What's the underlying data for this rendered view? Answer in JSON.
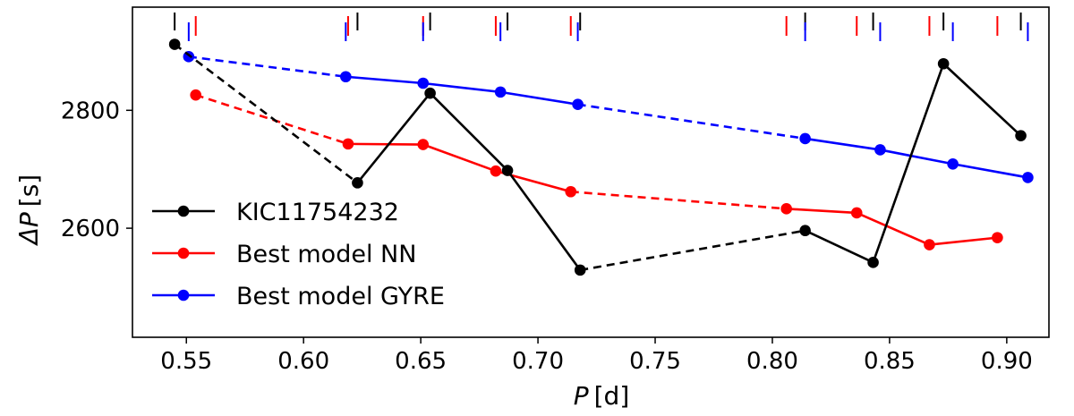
{
  "chart_data": {
    "type": "line",
    "xlabel_var": "P",
    "xlabel_unit": "[d]",
    "ylabel_var": "ΔP",
    "ylabel_unit": "[s]",
    "xlim": [
      0.527,
      0.918
    ],
    "ylim": [
      2415,
      2975
    ],
    "xticks": [
      0.55,
      0.6,
      0.65,
      0.7,
      0.75,
      0.8,
      0.85,
      0.9
    ],
    "xtick_labels": [
      "0.55",
      "0.60",
      "0.65",
      "0.70",
      "0.75",
      "0.80",
      "0.85",
      "0.90"
    ],
    "yticks": [
      2600,
      2800
    ],
    "ytick_labels": [
      "2600",
      "2800"
    ],
    "legend_position": "lower-left",
    "series": [
      {
        "name": "KIC11754232",
        "color": "#000000",
        "x": [
          0.545,
          0.623,
          0.654,
          0.687,
          0.718,
          0.814,
          0.843,
          0.873,
          0.906
        ],
        "y": [
          2912,
          2677,
          2829,
          2698,
          2529,
          2596,
          2542,
          2879,
          2757
        ],
        "dashed_segments": [
          0,
          4
        ]
      },
      {
        "name": "Best model NN",
        "color": "#ff0000",
        "x": [
          0.554,
          0.619,
          0.651,
          0.682,
          0.714,
          0.806,
          0.836,
          0.867,
          0.896
        ],
        "y": [
          2826,
          2743,
          2742,
          2697,
          2662,
          2633,
          2626,
          2572,
          2584
        ],
        "dashed_segments": [
          0,
          4
        ]
      },
      {
        "name": "Best model GYRE",
        "color": "#0000ff",
        "x": [
          0.551,
          0.618,
          0.651,
          0.684,
          0.717,
          0.814,
          0.846,
          0.877,
          0.909
        ],
        "y": [
          2891,
          2857,
          2846,
          2831,
          2810,
          2752,
          2733,
          2709,
          2686
        ],
        "dashed_segments": [
          0,
          4
        ]
      }
    ]
  }
}
